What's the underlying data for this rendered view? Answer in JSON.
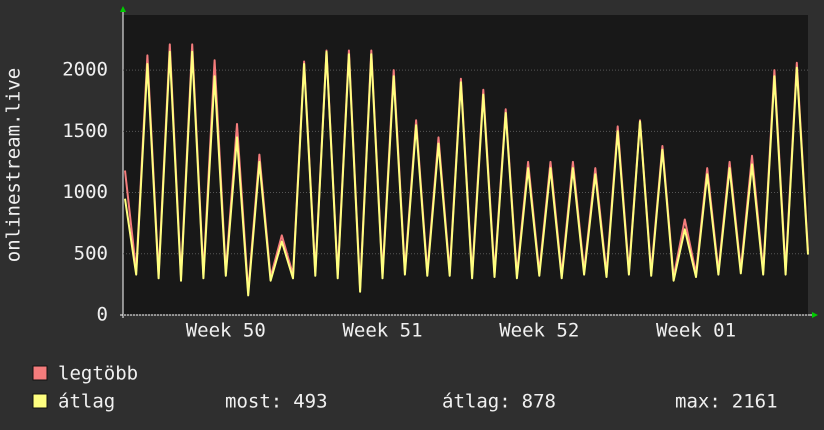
{
  "chart_data": {
    "type": "line",
    "ylabel": "onlinestream.live",
    "categories": [
      null,
      null,
      null,
      null,
      null,
      null,
      null,
      null,
      null,
      "Week 50",
      null,
      null,
      null,
      null,
      null,
      null,
      null,
      null,
      null,
      null,
      null,
      null,
      null,
      "Week 51",
      null,
      null,
      null,
      null,
      null,
      null,
      null,
      null,
      null,
      null,
      null,
      null,
      null,
      "Week 52",
      null,
      null,
      null,
      null,
      null,
      null,
      null,
      null,
      null,
      null,
      null,
      null,
      null,
      "Week 01",
      null,
      null,
      null,
      null,
      null,
      null,
      null,
      null,
      null,
      null
    ],
    "series": [
      {
        "name": "legtöbb",
        "color": "#f47c7c",
        "values": [
          1180,
          360,
          2120,
          330,
          2210,
          310,
          2210,
          330,
          2080,
          350,
          1560,
          190,
          1310,
          310,
          650,
          330,
          2070,
          350,
          2160,
          330,
          2160,
          220,
          2160,
          330,
          2000,
          360,
          1590,
          350,
          1450,
          350,
          1930,
          330,
          1840,
          340,
          1680,
          330,
          1250,
          350,
          1250,
          330,
          1250,
          360,
          1200,
          340,
          1540,
          360,
          1590,
          350,
          1380,
          310,
          780,
          340,
          1200,
          360,
          1250,
          370,
          1300,
          360,
          2000,
          360,
          2060,
          520
        ]
      },
      {
        "name": "átlag",
        "color": "#ffff80",
        "values": [
          950,
          330,
          2050,
          300,
          2150,
          280,
          2150,
          300,
          1950,
          320,
          1450,
          160,
          1250,
          280,
          600,
          300,
          2050,
          320,
          2150,
          300,
          2130,
          190,
          2130,
          300,
          1950,
          330,
          1550,
          320,
          1400,
          320,
          1900,
          300,
          1800,
          310,
          1650,
          300,
          1200,
          320,
          1200,
          300,
          1200,
          330,
          1150,
          310,
          1500,
          330,
          1580,
          320,
          1350,
          280,
          700,
          310,
          1150,
          330,
          1200,
          340,
          1230,
          330,
          1950,
          330,
          2020,
          493
        ]
      }
    ],
    "ylim": [
      0,
      2450
    ],
    "yticks": [
      0,
      500,
      1000,
      1500,
      2000
    ],
    "grid": true,
    "stats": [
      {
        "label": "most:",
        "value": 493
      },
      {
        "label": "átlag:",
        "value": 878
      },
      {
        "label": "max:",
        "value": 2161
      }
    ]
  }
}
